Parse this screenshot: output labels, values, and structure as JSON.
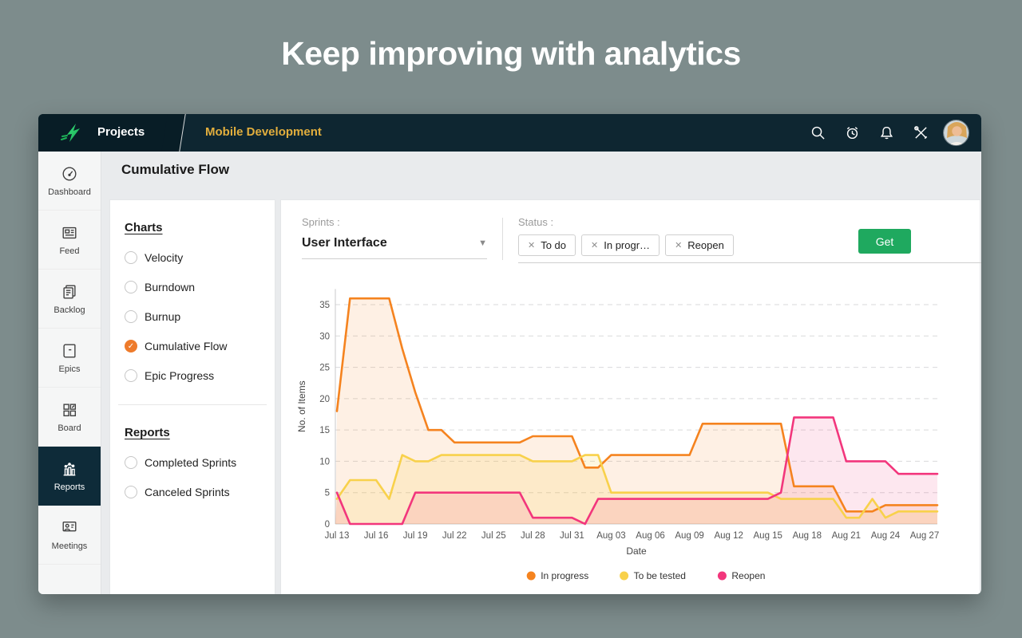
{
  "hero": {
    "title": "Keep improving with analytics"
  },
  "topbar": {
    "projects_label": "Projects",
    "project_name": "Mobile Development",
    "icons": [
      "search-icon",
      "history-clock-icon",
      "notifications-bell-icon",
      "settings-tools-icon"
    ],
    "avatar": "user-avatar"
  },
  "sidebar": {
    "items": [
      {
        "label": "Dashboard",
        "icon": "dashboard-gauge-icon",
        "active": false
      },
      {
        "label": "Feed",
        "icon": "feed-news-icon",
        "active": false
      },
      {
        "label": "Backlog",
        "icon": "backlog-docs-icon",
        "active": false
      },
      {
        "label": "Epics",
        "icon": "epics-book-icon",
        "active": false
      },
      {
        "label": "Board",
        "icon": "board-kanban-icon",
        "active": false
      },
      {
        "label": "Reports",
        "icon": "reports-barchart-icon",
        "active": true
      },
      {
        "label": "Meetings",
        "icon": "meetings-presentation-icon",
        "active": false
      }
    ]
  },
  "page": {
    "title": "Cumulative Flow"
  },
  "panel": {
    "charts_heading": "Charts",
    "chart_options": [
      {
        "label": "Velocity",
        "selected": false
      },
      {
        "label": "Burndown",
        "selected": false
      },
      {
        "label": "Burnup",
        "selected": false
      },
      {
        "label": "Cumulative Flow",
        "selected": true
      },
      {
        "label": "Epic Progress",
        "selected": false
      }
    ],
    "reports_heading": "Reports",
    "report_options": [
      {
        "label": "Completed Sprints",
        "selected": false
      },
      {
        "label": "Canceled Sprints",
        "selected": false
      }
    ],
    "selected_accent_color": "#ee7b2b"
  },
  "filters": {
    "sprints_label": "Sprints :",
    "sprints_value": "User Interface",
    "status_label": "Status :",
    "status_chips": [
      "To do",
      "In progr…",
      "Reopen"
    ],
    "get_label": "Get",
    "get_button_color": "#1fa95f"
  },
  "chart_data": {
    "type": "area",
    "title": "",
    "xlabel": "Date",
    "ylabel": "No. of Items",
    "ylim": [
      0,
      37.5
    ],
    "yticks": [
      0,
      5,
      10,
      15,
      20,
      25,
      30,
      35
    ],
    "grid": "horizontal-dashed",
    "legend_position": "bottom",
    "x_tick_labels": [
      "Jul 13",
      "Jul 16",
      "Jul 19",
      "Jul 22",
      "Jul 25",
      "Jul 28",
      "Jul 31",
      "Aug 03",
      "Aug 06",
      "Aug 09",
      "Aug 12",
      "Aug 15",
      "Aug 18",
      "Aug 21",
      "Aug 24",
      "Aug 27"
    ],
    "x": [
      "Jul 13",
      "Jul 14",
      "Jul 15",
      "Jul 16",
      "Jul 17",
      "Jul 18",
      "Jul 19",
      "Jul 20",
      "Jul 21",
      "Jul 22",
      "Jul 23",
      "Jul 24",
      "Jul 25",
      "Jul 26",
      "Jul 27",
      "Jul 28",
      "Jul 29",
      "Jul 30",
      "Jul 31",
      "Aug 01",
      "Aug 02",
      "Aug 03",
      "Aug 04",
      "Aug 05",
      "Aug 06",
      "Aug 07",
      "Aug 08",
      "Aug 09",
      "Aug 10",
      "Aug 11",
      "Aug 12",
      "Aug 13",
      "Aug 14",
      "Aug 15",
      "Aug 16",
      "Aug 17",
      "Aug 18",
      "Aug 19",
      "Aug 20",
      "Aug 21",
      "Aug 22",
      "Aug 23",
      "Aug 24",
      "Aug 25",
      "Aug 26",
      "Aug 27"
    ],
    "series": [
      {
        "name": "In progress",
        "color": "#f5831f",
        "values": [
          18,
          36,
          36,
          36,
          36,
          28,
          21,
          15,
          15,
          13,
          13,
          13,
          13,
          13,
          13,
          14,
          14,
          14,
          14,
          9,
          9,
          11,
          11,
          11,
          11,
          11,
          11,
          11,
          16,
          16,
          16,
          16,
          16,
          16,
          16,
          6,
          6,
          6,
          6,
          2,
          2,
          2,
          3,
          3,
          3,
          3
        ]
      },
      {
        "name": "To be tested",
        "color": "#f8d14b",
        "values": [
          4,
          7,
          7,
          7,
          4,
          11,
          10,
          10,
          11,
          11,
          11,
          11,
          11,
          11,
          11,
          10,
          10,
          10,
          10,
          11,
          11,
          5,
          5,
          5,
          5,
          5,
          5,
          5,
          5,
          5,
          5,
          5,
          5,
          5,
          4,
          4,
          4,
          4,
          4,
          1,
          1,
          4,
          1,
          2,
          2,
          2
        ]
      },
      {
        "name": "Reopen",
        "color": "#f2367c",
        "values": [
          5,
          0,
          0,
          0,
          0,
          0,
          5,
          5,
          5,
          5,
          5,
          5,
          5,
          5,
          5,
          1,
          1,
          1,
          1,
          0,
          4,
          4,
          4,
          4,
          4,
          4,
          4,
          4,
          4,
          4,
          4,
          4,
          4,
          4,
          5,
          17,
          17,
          17,
          17,
          10,
          10,
          10,
          10,
          8,
          8,
          8
        ]
      }
    ]
  }
}
